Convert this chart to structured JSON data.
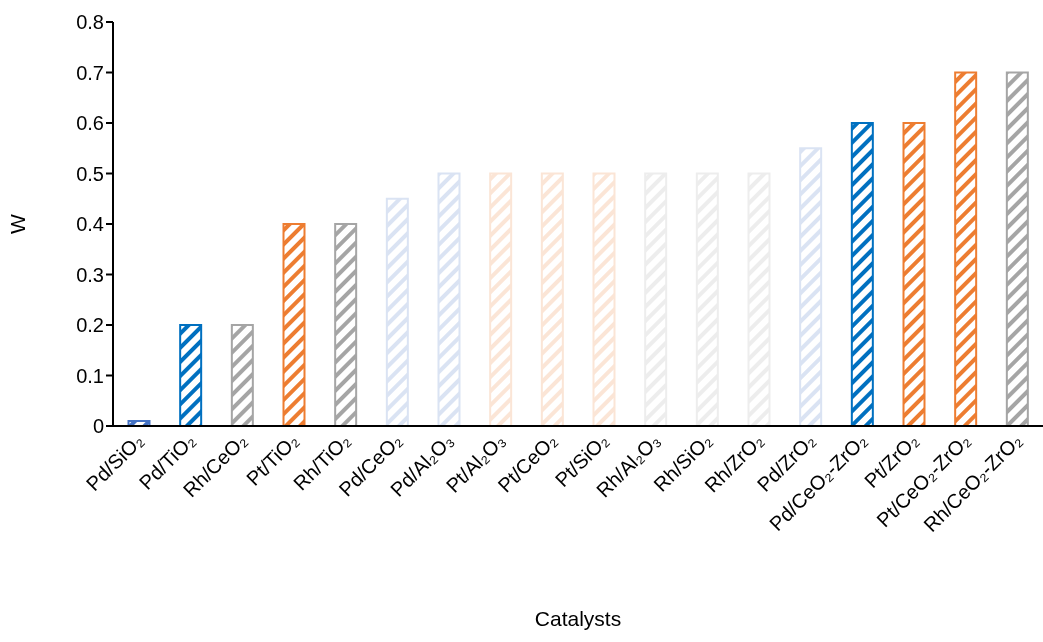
{
  "chart_data": {
    "type": "bar",
    "xlabel": "Catalysts",
    "ylabel": "W",
    "categories": [
      "Pd/SiO₂",
      "Pd/TiO₂",
      "Rh/CeO₂",
      "Pt/TiO₂",
      "Rh/TiO₂",
      "Pd/CeO₂",
      "Pd/Al₂O₃",
      "Pt/Al₂O₃",
      "Pt/CeO₂",
      "Pt/SiO₂",
      "Rh/Al₂O₃",
      "Rh/SiO₂",
      "Rh/ZrO₂",
      "Pd/ZrO₂",
      "Pd/CeO₂-ZrO₂",
      "Pt/ZrO₂",
      "Pt/CeO₂-ZrO₂",
      "Rh/CeO₂-ZrO₂"
    ],
    "values": [
      0.01,
      0.2,
      0.2,
      0.4,
      0.4,
      0.45,
      0.5,
      0.5,
      0.5,
      0.5,
      0.5,
      0.5,
      0.5,
      0.55,
      0.6,
      0.6,
      0.7,
      0.7
    ],
    "colors": [
      "#4472c4",
      "#0070c0",
      "#a5a5a5",
      "#ed7d31",
      "#a5a5a5",
      "#dae3f3",
      "#dae3f3",
      "#fbe5d6",
      "#fbe5d6",
      "#fbe5d6",
      "#ededed",
      "#ededed",
      "#ededed",
      "#dae3f3",
      "#0070c0",
      "#ed7d31",
      "#ed7d31",
      "#a5a5a5"
    ],
    "ylim": [
      0,
      0.8
    ],
    "yticks": [
      0,
      0.1,
      0.2,
      0.3,
      0.4,
      0.5,
      0.6,
      0.7,
      0.8
    ],
    "grid": false
  }
}
